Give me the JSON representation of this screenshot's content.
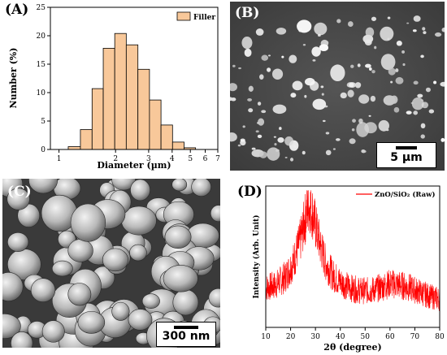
{
  "panels": {
    "A": {
      "letter": "(A)"
    },
    "B": {
      "letter": "(B)",
      "scale_bar": "5 µm"
    },
    "C": {
      "letter": "(C)",
      "scale_bar": "300 nm"
    },
    "D": {
      "letter": "(D)"
    }
  },
  "colors": {
    "bar_fill": "#f8c89a",
    "bar_stroke": "#000000",
    "xrd_line": "#ff0000"
  },
  "chart_data": [
    {
      "type": "bar",
      "panel": "A",
      "xlabel": "Diameter (µm)",
      "ylabel": "Number (%)",
      "xscale": "log",
      "xlim": [
        0.9,
        7
      ],
      "ylim": [
        0,
        25
      ],
      "xticks": [
        1,
        2,
        3,
        4,
        5,
        6,
        7
      ],
      "yticks": [
        0,
        5,
        10,
        15,
        20,
        25
      ],
      "legend": {
        "position": "top-right",
        "entries": [
          "Filler"
        ]
      },
      "bins": [
        {
          "from": 1.12,
          "to": 1.3,
          "value": 0.5
        },
        {
          "from": 1.3,
          "to": 1.5,
          "value": 3.5
        },
        {
          "from": 1.5,
          "to": 1.72,
          "value": 10.7
        },
        {
          "from": 1.72,
          "to": 1.98,
          "value": 17.8
        },
        {
          "from": 1.98,
          "to": 2.28,
          "value": 20.4
        },
        {
          "from": 2.28,
          "to": 2.63,
          "value": 18.4
        },
        {
          "from": 2.63,
          "to": 3.03,
          "value": 14.1
        },
        {
          "from": 3.03,
          "to": 3.49,
          "value": 8.7
        },
        {
          "from": 3.49,
          "to": 4.02,
          "value": 4.3
        },
        {
          "from": 4.02,
          "to": 4.63,
          "value": 1.3
        },
        {
          "from": 4.63,
          "to": 5.33,
          "value": 0.3
        }
      ]
    },
    {
      "type": "line",
      "panel": "D",
      "xlabel": "2θ (degree)",
      "ylabel": "Intensity (Arb. Unit)",
      "xlim": [
        10,
        80
      ],
      "xticks": [
        10,
        20,
        30,
        40,
        50,
        60,
        70,
        80
      ],
      "legend": {
        "position": "top-right",
        "entries": [
          "ZnO/SiO₂ (Raw)"
        ]
      },
      "series": [
        {
          "name": "ZnO/SiO₂ (Raw)",
          "x": [
            10,
            14,
            18,
            21,
            24,
            26,
            27,
            28,
            29,
            30,
            32,
            34,
            37,
            40,
            44,
            48,
            52,
            56,
            60,
            64,
            68,
            72,
            76,
            80
          ],
          "y": [
            0.28,
            0.3,
            0.36,
            0.46,
            0.62,
            0.78,
            0.85,
            0.86,
            0.8,
            0.72,
            0.58,
            0.46,
            0.37,
            0.32,
            0.28,
            0.26,
            0.26,
            0.28,
            0.31,
            0.3,
            0.28,
            0.25,
            0.22,
            0.2
          ]
        }
      ]
    }
  ]
}
